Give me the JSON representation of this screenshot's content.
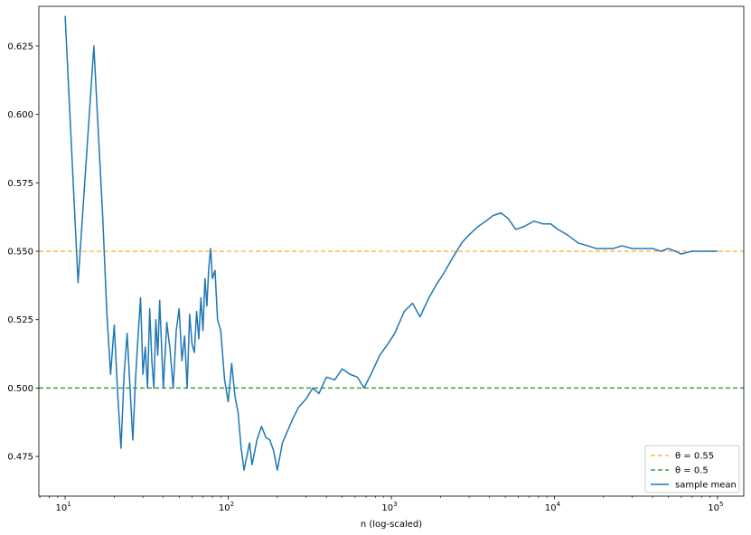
{
  "chart_data": {
    "type": "line",
    "title": "",
    "xlabel": "n (log-scaled)",
    "ylabel": "",
    "xscale": "log",
    "xlim": [
      6.9,
      145000
    ],
    "ylim": [
      0.4605,
      0.6395
    ],
    "grid": false,
    "legend_position": "lower-right",
    "x_ticks": [
      10,
      100,
      1000,
      10000,
      100000
    ],
    "x_tick_labels": [
      {
        "base": "10",
        "exp": "1"
      },
      {
        "base": "10",
        "exp": "2"
      },
      {
        "base": "10",
        "exp": "3"
      },
      {
        "base": "10",
        "exp": "4"
      },
      {
        "base": "10",
        "exp": "5"
      }
    ],
    "y_ticks": [
      0.475,
      0.5,
      0.525,
      0.55,
      0.575,
      0.6,
      0.625
    ],
    "y_tick_labels": [
      "0.475",
      "0.500",
      "0.525",
      "0.550",
      "0.575",
      "0.600",
      "0.625"
    ],
    "hlines": [
      {
        "y": 0.55,
        "color": "#ffbb55",
        "style": "dashed",
        "legend": "θ = 0.55"
      },
      {
        "y": 0.5,
        "color": "#3aa33a",
        "style": "dashed",
        "legend": "θ = 0.5"
      }
    ],
    "series": [
      {
        "name": "sample mean",
        "color": "#1f77b4",
        "x": [
          10,
          12,
          15,
          17,
          18,
          19,
          20,
          21,
          22,
          23,
          24,
          25,
          26,
          27,
          28,
          29,
          30,
          31,
          32,
          33,
          34,
          35,
          36,
          37,
          38,
          40,
          42,
          44,
          46,
          48,
          50,
          52,
          54,
          56,
          58,
          60,
          62,
          64,
          66,
          68,
          70,
          72,
          74,
          76,
          78,
          80,
          83,
          86,
          90,
          95,
          100,
          105,
          110,
          115,
          120,
          125,
          130,
          135,
          140,
          150,
          160,
          170,
          180,
          190,
          200,
          215,
          230,
          250,
          270,
          300,
          330,
          360,
          400,
          450,
          500,
          560,
          620,
          680,
          750,
          850,
          950,
          1050,
          1200,
          1350,
          1500,
          1700,
          1900,
          2100,
          2400,
          2700,
          3000,
          3400,
          3800,
          4200,
          4700,
          5200,
          5800,
          6500,
          7500,
          8500,
          9500,
          10500,
          12000,
          14000,
          16000,
          18000,
          20000,
          23000,
          26000,
          30000,
          35000,
          40000,
          45000,
          50000,
          55000,
          60000,
          70000,
          80000,
          90000,
          100000
        ],
        "y": [
          0.636,
          0.5385,
          0.625,
          0.5625,
          0.528,
          0.505,
          0.523,
          0.498,
          0.478,
          0.505,
          0.52,
          0.5,
          0.481,
          0.503,
          0.519,
          0.533,
          0.505,
          0.515,
          0.5,
          0.529,
          0.51,
          0.5,
          0.525,
          0.512,
          0.532,
          0.5,
          0.524,
          0.514,
          0.5,
          0.521,
          0.529,
          0.51,
          0.519,
          0.5,
          0.527,
          0.516,
          0.513,
          0.528,
          0.518,
          0.533,
          0.521,
          0.54,
          0.53,
          0.544,
          0.551,
          0.54,
          0.543,
          0.525,
          0.521,
          0.503,
          0.495,
          0.509,
          0.497,
          0.491,
          0.478,
          0.47,
          0.475,
          0.48,
          0.472,
          0.481,
          0.486,
          0.482,
          0.481,
          0.477,
          0.47,
          0.48,
          0.484,
          0.489,
          0.493,
          0.496,
          0.5,
          0.498,
          0.504,
          0.503,
          0.507,
          0.505,
          0.504,
          0.5,
          0.505,
          0.512,
          0.516,
          0.52,
          0.528,
          0.531,
          0.526,
          0.533,
          0.538,
          0.542,
          0.548,
          0.553,
          0.556,
          0.559,
          0.561,
          0.563,
          0.564,
          0.562,
          0.558,
          0.559,
          0.561,
          0.56,
          0.56,
          0.558,
          0.556,
          0.553,
          0.552,
          0.551,
          0.551,
          0.551,
          0.552,
          0.551,
          0.551,
          0.551,
          0.55,
          0.551,
          0.55,
          0.549,
          0.55,
          0.55,
          0.55,
          0.55
        ]
      }
    ]
  }
}
